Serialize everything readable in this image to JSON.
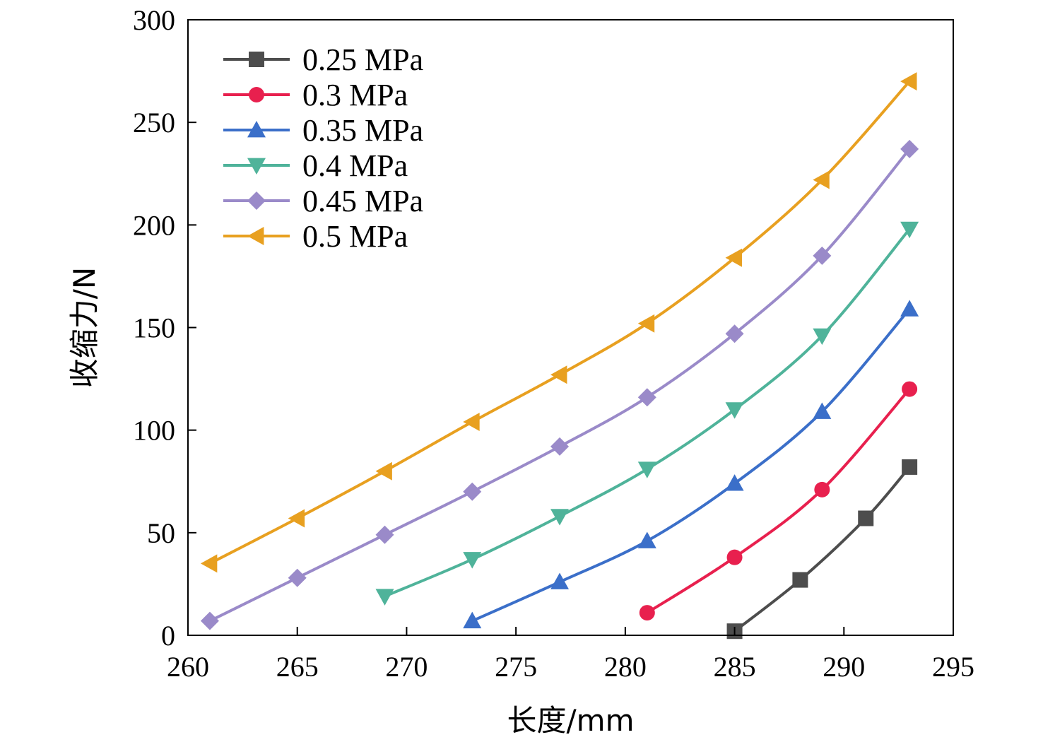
{
  "chart_data": {
    "type": "line",
    "xlabel": "长度/mm",
    "ylabel": "收缩力/N",
    "xlim": [
      260,
      295
    ],
    "ylim": [
      0,
      300
    ],
    "xticks": [
      260,
      265,
      270,
      275,
      280,
      285,
      290,
      295
    ],
    "yticks": [
      0,
      50,
      100,
      150,
      200,
      250,
      300
    ],
    "grid": false,
    "legend_position": "top-left",
    "series": [
      {
        "name": "0.25 MPa",
        "color": "#4d4d4d",
        "marker": "square",
        "x": [
          285,
          288,
          291,
          293
        ],
        "y": [
          2,
          27,
          57,
          82
        ]
      },
      {
        "name": "0.3 MPa",
        "color": "#e8204e",
        "marker": "circle",
        "x": [
          281,
          285,
          289,
          293
        ],
        "y": [
          11,
          38,
          71,
          120
        ]
      },
      {
        "name": "0.35 MPa",
        "color": "#3b6fc9",
        "marker": "triangle-up",
        "x": [
          273,
          277,
          281,
          285,
          289,
          293
        ],
        "y": [
          7,
          26,
          46,
          74,
          109,
          159
        ]
      },
      {
        "name": "0.4 MPa",
        "color": "#4fb39a",
        "marker": "triangle-down",
        "x": [
          269,
          273,
          277,
          281,
          285,
          289,
          293
        ],
        "y": [
          19,
          37,
          58,
          81,
          110,
          146,
          198
        ]
      },
      {
        "name": "0.45 MPa",
        "color": "#9a8ac9",
        "marker": "diamond",
        "x": [
          261,
          265,
          269,
          273,
          277,
          281,
          285,
          289,
          293
        ],
        "y": [
          7,
          28,
          49,
          70,
          92,
          116,
          147,
          185,
          237
        ]
      },
      {
        "name": "0.5 MPa",
        "color": "#e8a020",
        "marker": "triangle-left",
        "x": [
          261,
          265,
          269,
          273,
          277,
          281,
          285,
          289,
          293
        ],
        "y": [
          35,
          57,
          80,
          104,
          127,
          152,
          184,
          222,
          270
        ]
      }
    ]
  }
}
